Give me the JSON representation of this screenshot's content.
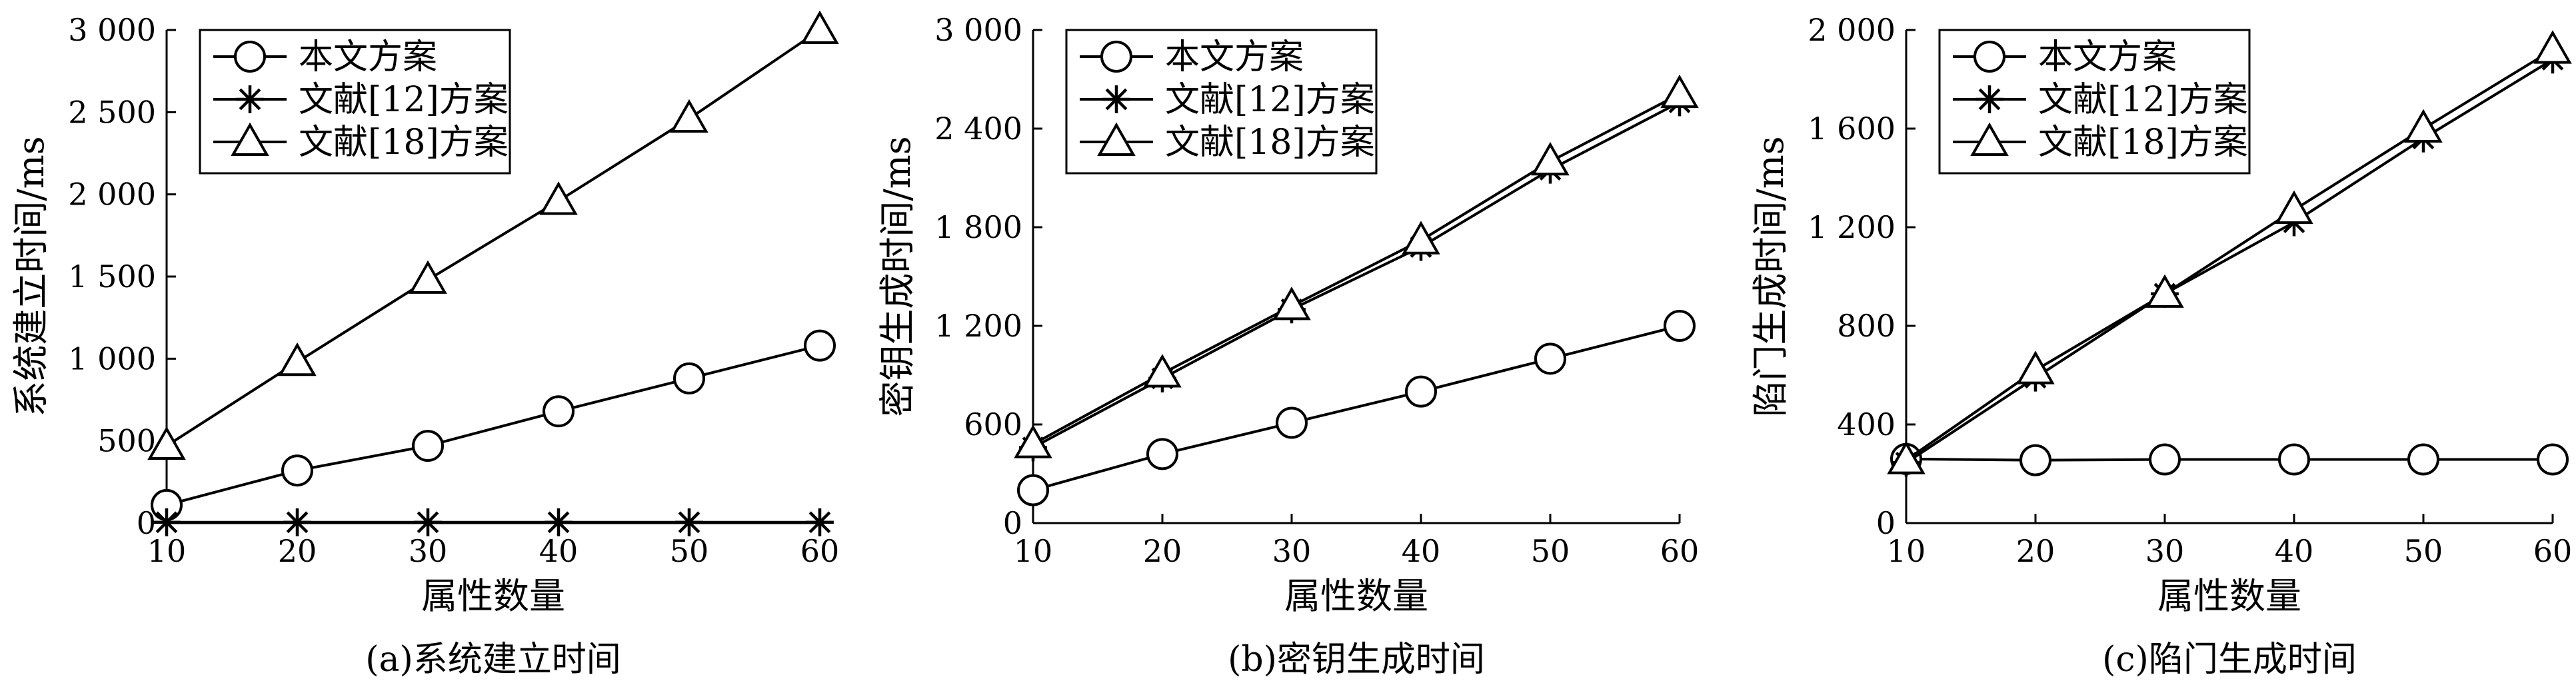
{
  "chart_data": [
    {
      "type": "line",
      "caption": "(a)系统建立时间",
      "xlabel": "属性数量",
      "ylabel": "系统建立时间/ms",
      "x": [
        10,
        20,
        30,
        40,
        50,
        60
      ],
      "xlim": [
        10,
        60
      ],
      "ylim": [
        0,
        3000
      ],
      "yticks": [
        0,
        500,
        1000,
        1500,
        2000,
        2500,
        3000
      ],
      "yticklabels": [
        "0",
        "500",
        "1 000",
        "1 500",
        "2 000",
        "2 500",
        "3 000"
      ],
      "legend_position": "top-left",
      "grid": false,
      "series": [
        {
          "name": "本文方案",
          "marker": "circle",
          "values": [
            110,
            320,
            470,
            680,
            880,
            1080
          ]
        },
        {
          "name": "文献[12]方案",
          "marker": "asterisk",
          "values": [
            5,
            5,
            5,
            5,
            5,
            5
          ]
        },
        {
          "name": "文献[18]方案",
          "marker": "triangle",
          "values": [
            470,
            980,
            1480,
            1960,
            2460,
            3000
          ]
        }
      ]
    },
    {
      "type": "line",
      "caption": "(b)密钥生成时间",
      "xlabel": "属性数量",
      "ylabel": "密钥生成时间/ms",
      "x": [
        10,
        20,
        30,
        40,
        50,
        60
      ],
      "xlim": [
        10,
        60
      ],
      "ylim": [
        0,
        3000
      ],
      "yticks": [
        0,
        600,
        1200,
        1800,
        2400,
        3000
      ],
      "yticklabels": [
        "0",
        "600",
        "1 200",
        "1 800",
        "2 400",
        "3 000"
      ],
      "legend_position": "top-left",
      "grid": false,
      "series": [
        {
          "name": "本文方案",
          "marker": "circle",
          "values": [
            200,
            420,
            610,
            800,
            1000,
            1200
          ]
        },
        {
          "name": "文献[12]方案",
          "marker": "asterisk",
          "values": [
            460,
            880,
            1300,
            1680,
            2150,
            2560
          ]
        },
        {
          "name": "文献[18]方案",
          "marker": "triangle",
          "values": [
            480,
            910,
            1320,
            1720,
            2200,
            2610
          ]
        }
      ]
    },
    {
      "type": "line",
      "caption": "(c)陷门生成时间",
      "xlabel": "属性数量",
      "ylabel": "陷门生成时间/ms",
      "x": [
        10,
        20,
        30,
        40,
        50,
        60
      ],
      "xlim": [
        10,
        60
      ],
      "ylim": [
        0,
        2000
      ],
      "yticks": [
        0,
        400,
        800,
        1200,
        1600,
        2000
      ],
      "yticklabels": [
        "0",
        "400",
        "800",
        "1 200",
        "1 600",
        "2 000"
      ],
      "legend_position": "top-left",
      "grid": false,
      "series": [
        {
          "name": "本文方案",
          "marker": "circle",
          "values": [
            260,
            255,
            258,
            258,
            258,
            258
          ]
        },
        {
          "name": "文献[12]方案",
          "marker": "asterisk",
          "values": [
            245,
            590,
            930,
            1220,
            1560,
            1880
          ]
        },
        {
          "name": "文献[18]方案",
          "marker": "triangle",
          "values": [
            255,
            620,
            930,
            1270,
            1600,
            1920
          ]
        }
      ]
    }
  ]
}
